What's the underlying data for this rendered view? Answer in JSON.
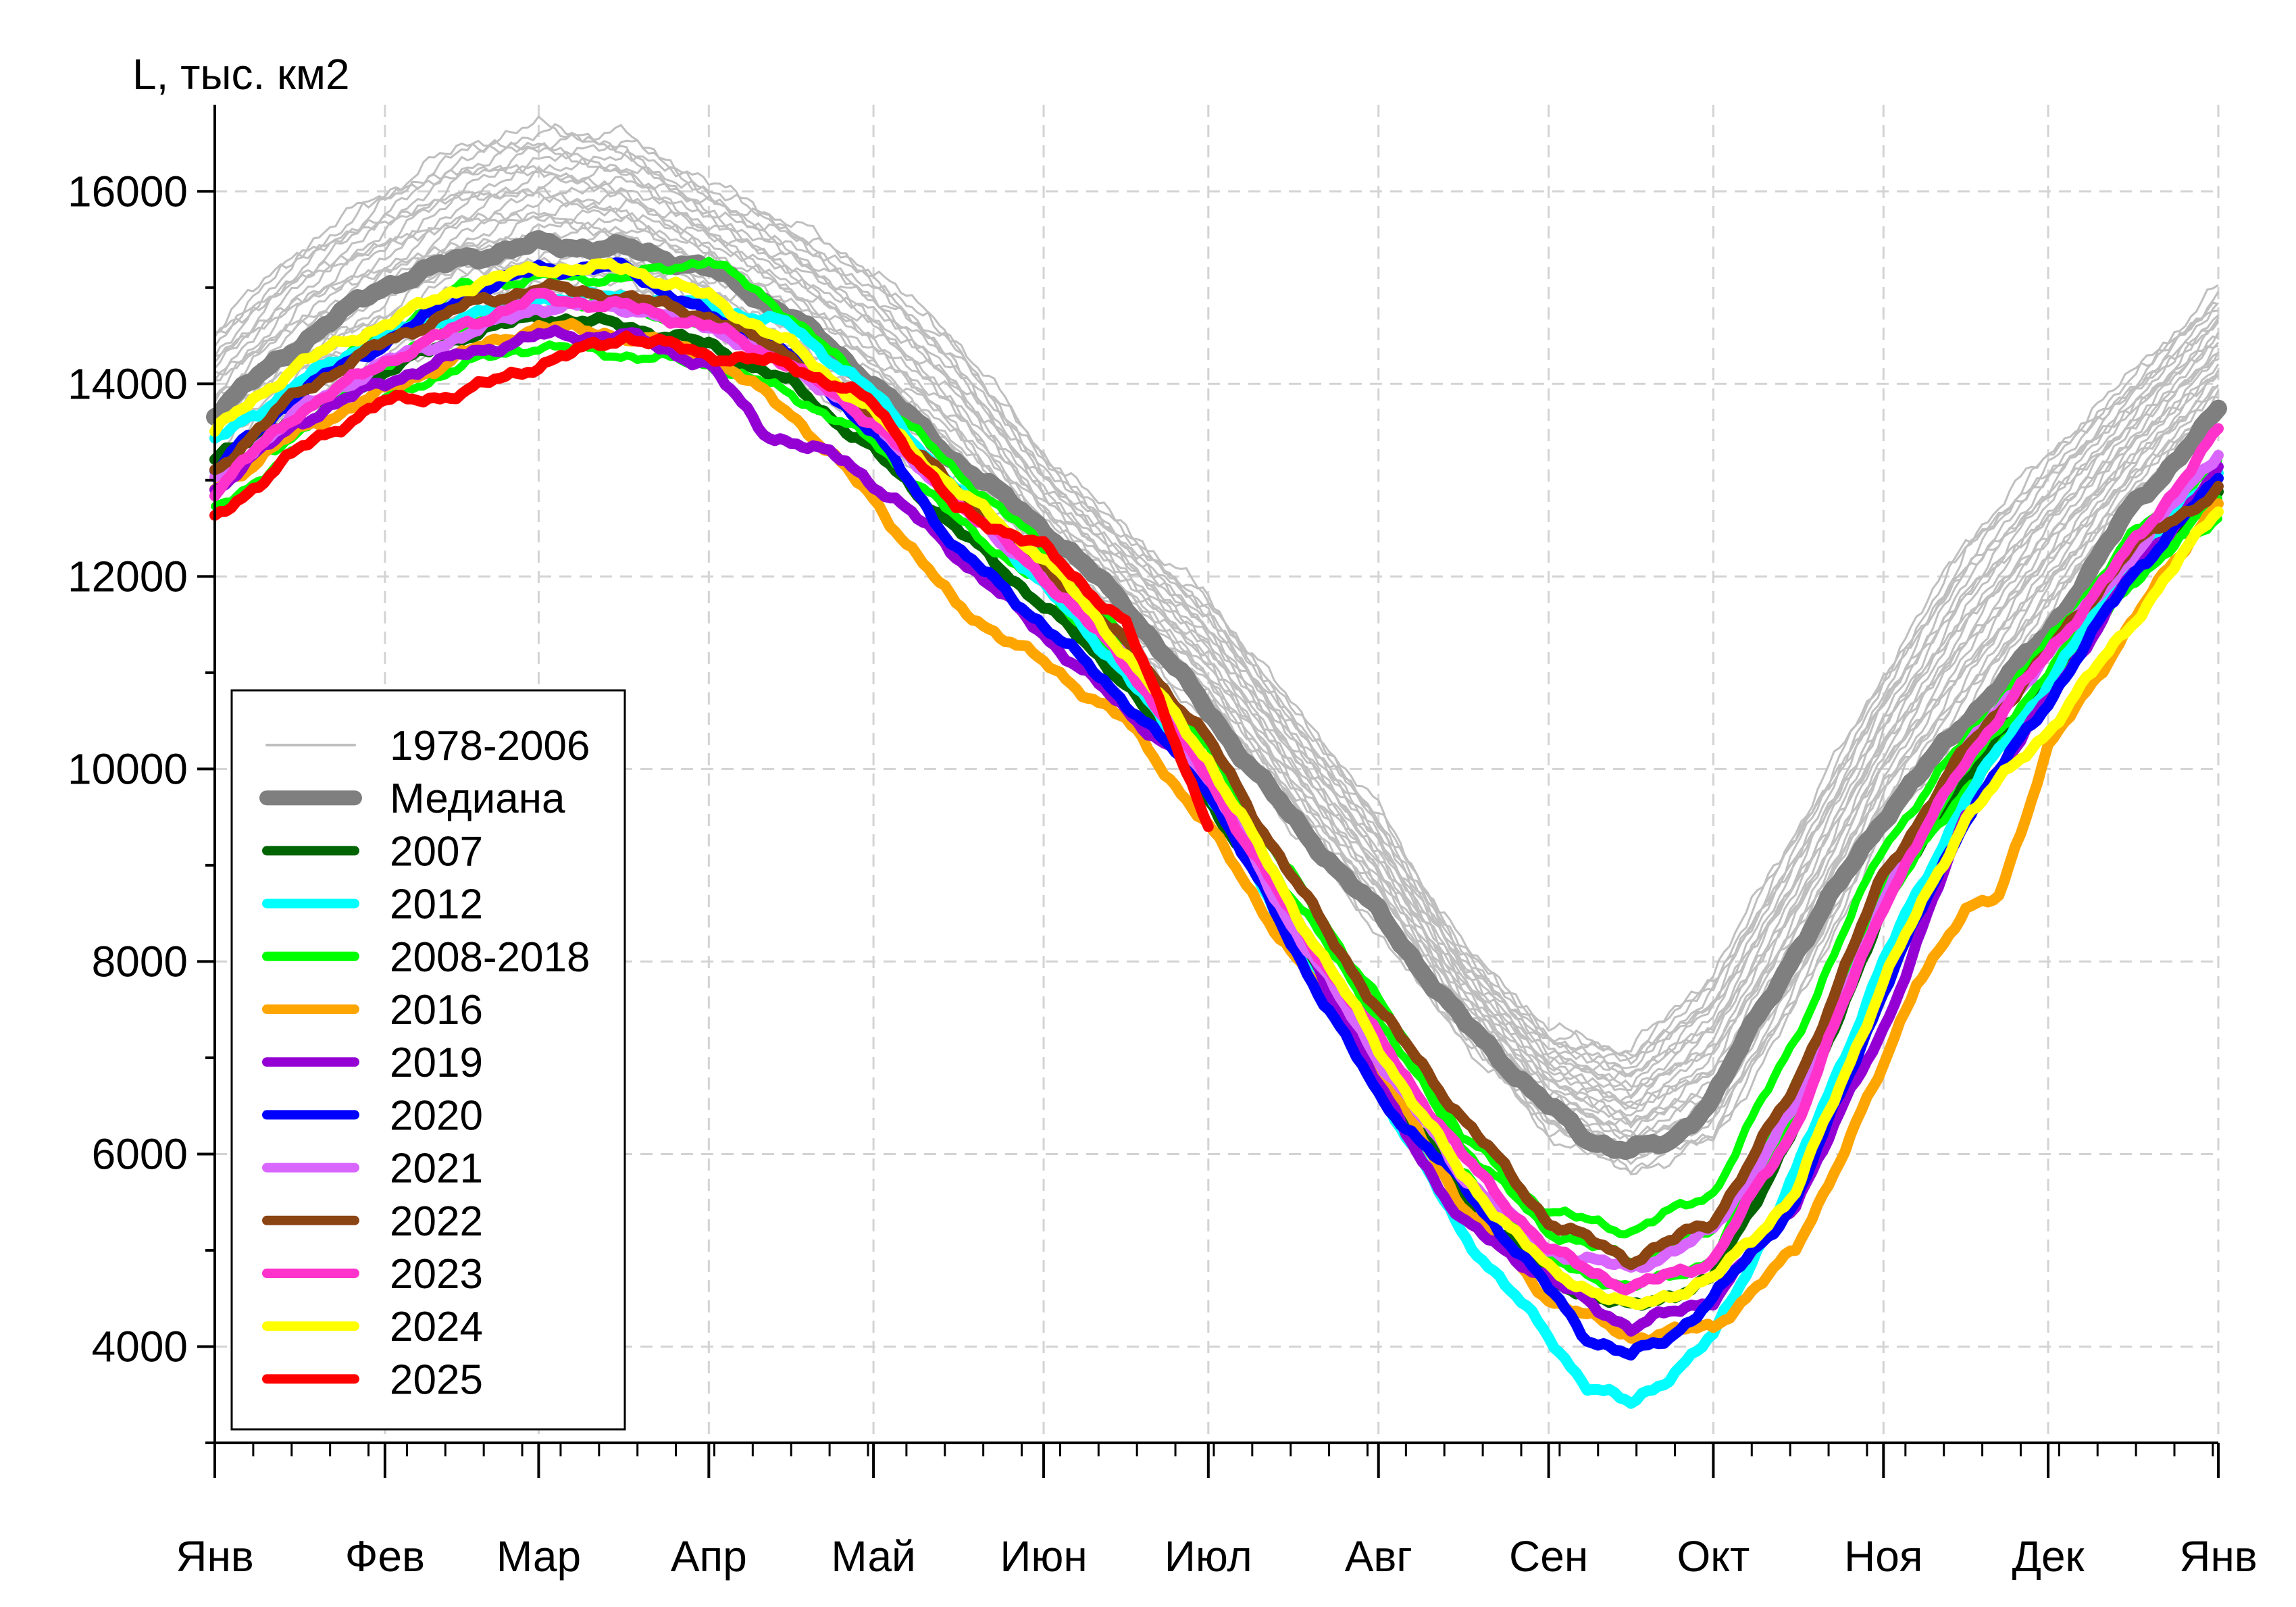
{
  "chart_data": {
    "type": "line",
    "title": "",
    "ylabel": "L, тыс. км2",
    "xlabel": "",
    "ylim": [
      3000,
      16900
    ],
    "xlim": [
      0,
      365
    ],
    "grid": true,
    "legend_position": "bottom-left",
    "x_ticks": [
      {
        "day": 0,
        "label": "Янв"
      },
      {
        "day": 31,
        "label": "Фев"
      },
      {
        "day": 59,
        "label": "Мар"
      },
      {
        "day": 90,
        "label": "Апр"
      },
      {
        "day": 120,
        "label": "Май"
      },
      {
        "day": 151,
        "label": "Июн"
      },
      {
        "day": 181,
        "label": "Июл"
      },
      {
        "day": 212,
        "label": "Авг"
      },
      {
        "day": 243,
        "label": "Сен"
      },
      {
        "day": 273,
        "label": "Окт"
      },
      {
        "day": 304,
        "label": "Ноя"
      },
      {
        "day": 334,
        "label": "Дек"
      },
      {
        "day": 365,
        "label": "Янв"
      }
    ],
    "y_ticks": [
      {
        "value": 4000,
        "label": "4000"
      },
      {
        "value": 6000,
        "label": "6000"
      },
      {
        "value": 8000,
        "label": "8000"
      },
      {
        "value": 10000,
        "label": "10000"
      },
      {
        "value": 12000,
        "label": "12000"
      },
      {
        "value": 14000,
        "label": "14000"
      },
      {
        "value": 16000,
        "label": "16000"
      }
    ],
    "y_minor_ticks": [
      3000,
      5000,
      7000,
      9000,
      11000,
      13000,
      15000
    ],
    "background_band": {
      "name": "1978-2006",
      "color": "#bfbfbf",
      "count": 29,
      "x": [
        0,
        15,
        30,
        45,
        59,
        75,
        90,
        105,
        120,
        135,
        151,
        166,
        181,
        196,
        212,
        227,
        243,
        258,
        273,
        288,
        304,
        319,
        334,
        349,
        365
      ],
      "low": [
        12900,
        13600,
        14000,
        14500,
        14800,
        14900,
        14600,
        14100,
        13500,
        12800,
        11900,
        11300,
        10500,
        9400,
        8300,
        7200,
        6200,
        5800,
        6100,
        7500,
        9300,
        10400,
        11600,
        12700,
        13600
      ],
      "high": [
        14600,
        15400,
        16000,
        16500,
        16700,
        16600,
        16100,
        15700,
        15200,
        14500,
        13300,
        12500,
        11800,
        10700,
        9600,
        8200,
        7300,
        7100,
        7900,
        9400,
        11000,
        12400,
        13300,
        14100,
        15000
      ]
    },
    "series": [
      {
        "name": "Медиана",
        "color": "#7f7f7f",
        "width": 26,
        "x": [
          0,
          15,
          30,
          45,
          59,
          75,
          90,
          105,
          120,
          135,
          151,
          166,
          181,
          196,
          212,
          227,
          243,
          250,
          258,
          265,
          273,
          288,
          304,
          319,
          334,
          349,
          365
        ],
        "y": [
          13700,
          14400,
          15000,
          15300,
          15450,
          15400,
          15200,
          14700,
          14000,
          13200,
          12500,
          11700,
          10600,
          9500,
          8500,
          7400,
          6500,
          6150,
          6050,
          6100,
          6600,
          8100,
          9500,
          10500,
          11400,
          12700,
          13700
        ]
      },
      {
        "name": "2007",
        "color": "#006400",
        "width": 16,
        "x": [
          0,
          15,
          30,
          45,
          59,
          75,
          90,
          105,
          120,
          135,
          151,
          166,
          181,
          196,
          212,
          227,
          243,
          258,
          273,
          288,
          304,
          319,
          334,
          349,
          365
        ],
        "y": [
          13200,
          13700,
          14100,
          14500,
          14700,
          14600,
          14400,
          14000,
          13300,
          12500,
          11700,
          10900,
          9700,
          8300,
          6900,
          5600,
          4700,
          4400,
          4700,
          6300,
          8600,
          9900,
          10900,
          12000,
          12900
        ]
      },
      {
        "name": "2008-2018",
        "color": "#00ff00",
        "width": 12,
        "x": [
          0,
          15,
          30,
          45,
          59,
          75,
          90,
          105,
          120,
          135,
          151,
          166,
          181,
          196,
          212,
          227,
          243,
          258,
          273,
          288,
          304,
          319,
          334,
          349,
          365
        ],
        "y": [
          12700,
          13300,
          13800,
          14200,
          14400,
          14300,
          14200,
          13900,
          13400,
          12600,
          11900,
          11000,
          10000,
          8700,
          7400,
          6100,
          5200,
          4900,
          5200,
          6700,
          8800,
          10000,
          11000,
          12100,
          12600
        ]
      },
      {
        "name": "2008-2018",
        "color": "#00ff00",
        "width": 12,
        "x": [
          0,
          15,
          30,
          45,
          59,
          75,
          90,
          105,
          120,
          135,
          151,
          166,
          181,
          196,
          212,
          227,
          243,
          258,
          273,
          288,
          304,
          319,
          334,
          349,
          365
        ],
        "y": [
          13100,
          13900,
          14500,
          15000,
          15100,
          15100,
          15300,
          14700,
          13900,
          13100,
          12300,
          11300,
          10200,
          8900,
          7600,
          6200,
          5400,
          5200,
          5600,
          7200,
          9200,
          10300,
          11300,
          12400,
          13200
        ]
      },
      {
        "name": "2008-2018",
        "color": "#00ff00",
        "width": 12,
        "x": [
          0,
          15,
          30,
          45,
          59,
          75,
          90,
          105,
          120,
          135,
          151,
          166,
          181,
          196,
          212,
          227,
          243,
          258,
          273,
          288,
          304,
          319,
          334,
          349,
          365
        ],
        "y": [
          12900,
          13500,
          14200,
          14600,
          14900,
          14800,
          14600,
          14200,
          13600,
          12800,
          12000,
          11100,
          10000,
          8500,
          7100,
          5800,
          4900,
          4600,
          4900,
          6500,
          8600,
          9800,
          10800,
          11900,
          12800
        ]
      },
      {
        "name": "2012",
        "color": "#00ffff",
        "width": 16,
        "x": [
          0,
          15,
          30,
          45,
          59,
          75,
          90,
          105,
          120,
          135,
          151,
          166,
          181,
          196,
          212,
          227,
          243,
          250,
          258,
          265,
          273,
          288,
          304,
          319,
          334,
          349,
          365
        ],
        "y": [
          13400,
          14000,
          14500,
          14700,
          14900,
          14900,
          14800,
          14600,
          13900,
          12900,
          11900,
          11000,
          9800,
          8200,
          6700,
          5200,
          4100,
          3600,
          3400,
          3700,
          4100,
          5800,
          8000,
          9700,
          10900,
          12100,
          13100
        ]
      },
      {
        "name": "2016",
        "color": "#ffa500",
        "width": 16,
        "x": [
          0,
          15,
          30,
          45,
          59,
          75,
          90,
          105,
          120,
          135,
          151,
          166,
          181,
          196,
          212,
          227,
          243,
          258,
          273,
          288,
          304,
          310,
          319,
          325,
          334,
          349,
          365
        ],
        "y": [
          12900,
          13500,
          13900,
          14300,
          14600,
          14500,
          14300,
          13700,
          12800,
          11700,
          11100,
          10500,
          9400,
          8100,
          6900,
          5500,
          4500,
          4100,
          4200,
          5000,
          6900,
          7800,
          8500,
          8700,
          10200,
          11500,
          12800
        ]
      },
      {
        "name": "2019",
        "color": "#9400d3",
        "width": 16,
        "x": [
          0,
          15,
          30,
          45,
          59,
          75,
          90,
          100,
          115,
          130,
          151,
          166,
          181,
          196,
          212,
          227,
          243,
          258,
          273,
          288,
          304,
          319,
          334,
          349,
          365
        ],
        "y": [
          12900,
          13600,
          14000,
          14300,
          14500,
          14500,
          14200,
          13500,
          13200,
          12500,
          11400,
          10600,
          9900,
          8500,
          6700,
          5300,
          4700,
          4200,
          4500,
          5500,
          7300,
          9500,
          10700,
          12000,
          13100
        ]
      },
      {
        "name": "2020",
        "color": "#0000ff",
        "width": 16,
        "x": [
          0,
          15,
          30,
          45,
          59,
          75,
          90,
          105,
          120,
          135,
          151,
          166,
          181,
          196,
          212,
          227,
          243,
          250,
          258,
          265,
          273,
          288,
          304,
          319,
          334,
          349,
          365
        ],
        "y": [
          13100,
          13900,
          14400,
          14900,
          15200,
          15200,
          14700,
          14300,
          13500,
          12300,
          11500,
          10700,
          9800,
          8200,
          6600,
          5700,
          4600,
          4100,
          3900,
          4100,
          4500,
          5500,
          7700,
          9500,
          10700,
          12000,
          13000
        ]
      },
      {
        "name": "2021",
        "color": "#d966ff",
        "width": 16,
        "x": [
          0,
          15,
          30,
          45,
          59,
          75,
          90,
          105,
          120,
          135,
          151,
          166,
          181,
          196,
          212,
          227,
          243,
          258,
          273,
          288,
          304,
          319,
          334,
          349,
          365
        ],
        "y": [
          13000,
          13700,
          14200,
          14500,
          14800,
          14800,
          14600,
          14200,
          13600,
          12800,
          12000,
          11200,
          9900,
          8400,
          7000,
          5800,
          5000,
          4800,
          5200,
          6500,
          8600,
          10200,
          11200,
          12200,
          13300
        ]
      },
      {
        "name": "2022",
        "color": "#8b4513",
        "width": 16,
        "x": [
          0,
          15,
          30,
          45,
          59,
          75,
          90,
          105,
          120,
          135,
          151,
          166,
          181,
          196,
          212,
          227,
          243,
          258,
          273,
          288,
          304,
          319,
          334,
          349,
          365
        ],
        "y": [
          13100,
          13900,
          14400,
          14800,
          15000,
          14900,
          14700,
          14300,
          13700,
          12900,
          12100,
          11300,
          10300,
          8900,
          7500,
          6400,
          5300,
          4900,
          5300,
          6700,
          8900,
          10200,
          11200,
          12300,
          12900
        ]
      },
      {
        "name": "2023",
        "color": "#ff33cc",
        "width": 16,
        "x": [
          0,
          15,
          30,
          45,
          59,
          75,
          90,
          105,
          120,
          135,
          151,
          166,
          181,
          196,
          212,
          227,
          243,
          258,
          273,
          288,
          304,
          319,
          334,
          349,
          365
        ],
        "y": [
          12900,
          13700,
          14200,
          14600,
          14900,
          14800,
          14600,
          14200,
          13600,
          12800,
          12000,
          11100,
          9900,
          8500,
          7200,
          6000,
          5000,
          4600,
          4900,
          6300,
          8600,
          10100,
          11200,
          12300,
          13500
        ]
      },
      {
        "name": "2024",
        "color": "#ffff00",
        "width": 16,
        "x": [
          0,
          15,
          30,
          45,
          59,
          75,
          90,
          105,
          120,
          135,
          151,
          166,
          181,
          196,
          212,
          227,
          243,
          258,
          273,
          288,
          304,
          319,
          334,
          349,
          365
        ],
        "y": [
          13500,
          14200,
          14600,
          15000,
          15200,
          15200,
          14900,
          14400,
          13700,
          12900,
          12200,
          11200,
          10100,
          8600,
          7100,
          5800,
          4800,
          4400,
          4700,
          5600,
          7800,
          9500,
          10400,
          11500,
          12700
        ]
      },
      {
        "name": "2025",
        "color": "#ff0000",
        "width": 16,
        "x": [
          0,
          15,
          30,
          45,
          59,
          75,
          90,
          105,
          120,
          135,
          151,
          166,
          175,
          181
        ],
        "y": [
          12600,
          13300,
          13800,
          13900,
          14200,
          14500,
          14300,
          14200,
          13800,
          12700,
          12300,
          11500,
          10300,
          9400
        ]
      }
    ],
    "legend": [
      {
        "label": "1978-2006",
        "color": "#bfbfbf",
        "width": 4
      },
      {
        "label": "Медиана",
        "color": "#7f7f7f",
        "width": 22
      },
      {
        "label": "2007",
        "color": "#006400",
        "width": 14
      },
      {
        "label": "2012",
        "color": "#00ffff",
        "width": 14
      },
      {
        "label": "2008-2018",
        "color": "#00ff00",
        "width": 14
      },
      {
        "label": "2016",
        "color": "#ffa500",
        "width": 14
      },
      {
        "label": "2019",
        "color": "#9400d3",
        "width": 14
      },
      {
        "label": "2020",
        "color": "#0000ff",
        "width": 14
      },
      {
        "label": "2021",
        "color": "#d966ff",
        "width": 14
      },
      {
        "label": "2022",
        "color": "#8b4513",
        "width": 14
      },
      {
        "label": "2023",
        "color": "#ff33cc",
        "width": 14
      },
      {
        "label": "2024",
        "color": "#ffff00",
        "width": 14
      },
      {
        "label": "2025",
        "color": "#ff0000",
        "width": 14
      }
    ]
  }
}
